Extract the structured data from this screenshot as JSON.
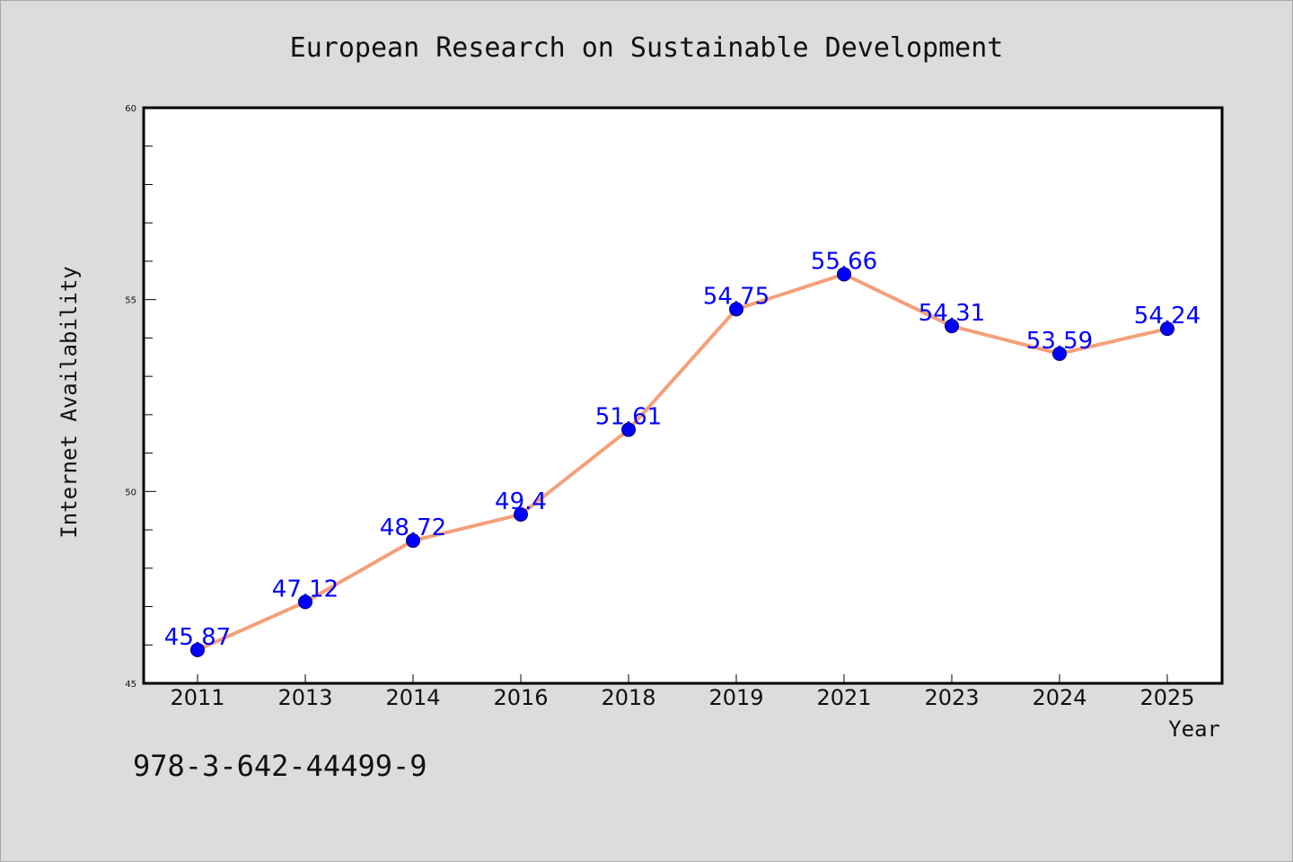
{
  "chart_data": {
    "type": "line",
    "title": "European Research on Sustainable Development",
    "xlabel": "Year",
    "ylabel": "Internet Availability",
    "categories": [
      "2011",
      "2013",
      "2014",
      "2016",
      "2018",
      "2019",
      "2021",
      "2023",
      "2024",
      "2025"
    ],
    "values": [
      45.87,
      47.12,
      48.72,
      49.4,
      51.61,
      54.75,
      55.66,
      54.31,
      53.59,
      54.24
    ],
    "data_labels": [
      "45.87",
      "47.12",
      "48.72",
      "49.4",
      "51.61",
      "54.75",
      "55.66",
      "54.31",
      "53.59",
      "54.24"
    ],
    "ylim": [
      45,
      60
    ],
    "yticks": [
      "45",
      "50",
      "55",
      "60"
    ],
    "grid": false,
    "colors": {
      "line": "#f4a07a",
      "marker": "#0000ff",
      "data_label": "#0000ff"
    }
  },
  "footer": {
    "isbn": "978-3-642-44499-9"
  }
}
